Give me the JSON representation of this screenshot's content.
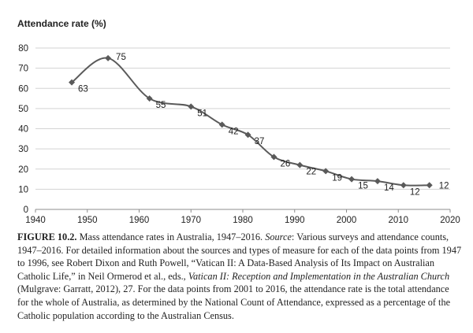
{
  "chart_data": {
    "type": "line",
    "title": "",
    "ylabel": "Attendance rate (%)",
    "xlabel": "",
    "xlim": [
      1940,
      2020
    ],
    "ylim": [
      0,
      80
    ],
    "x_ticks": [
      "1940",
      "1950",
      "1960",
      "1970",
      "1980",
      "1990",
      "2000",
      "2010",
      "2020"
    ],
    "y_ticks": [
      "0",
      "10",
      "20",
      "30",
      "40",
      "50",
      "60",
      "70",
      "80"
    ],
    "grid": "horizontal",
    "legend": "none",
    "line_color": "#5a5a5a",
    "series": [
      {
        "x": [
          1947,
          1954,
          1962,
          1970,
          1976,
          1981,
          1986,
          1991,
          1996,
          2001,
          2006,
          2011,
          2016
        ],
        "values": [
          63,
          75,
          55,
          51,
          42,
          37,
          26,
          22,
          19,
          15,
          14,
          12,
          12
        ],
        "labels": [
          "63",
          "75",
          "55",
          "51",
          "42",
          "37",
          "26",
          "22",
          "19",
          "15",
          "14",
          "12",
          "12"
        ]
      }
    ]
  },
  "caption": {
    "lead": "FIGURE 10.2.",
    "text1": " Mass attendance rates in Australia, 1947–2016. ",
    "source_label": "Source",
    "text2": ": Various surveys and attendance counts, 1947–2016. For detailed information about the sources and types of measure for each of the data points from 1947 to 1996, see Robert Dixon and Ruth Powell, “Vatican II: A Data-Based Analysis of Its Impact on Australian Catholic Life,” in Neil Ormerod et al., eds., ",
    "book_title": "Vatican II: Reception and Implementation in the Australian Church",
    "text3": " (Mulgrave: Garratt, 2012), 27. For the data points from 2001 to 2016, the attendance rate is the total attendance for the whole of Australia, as determined by the National Count of Attendance, expressed as a percentage of the Catholic population according to the Australian Census."
  }
}
